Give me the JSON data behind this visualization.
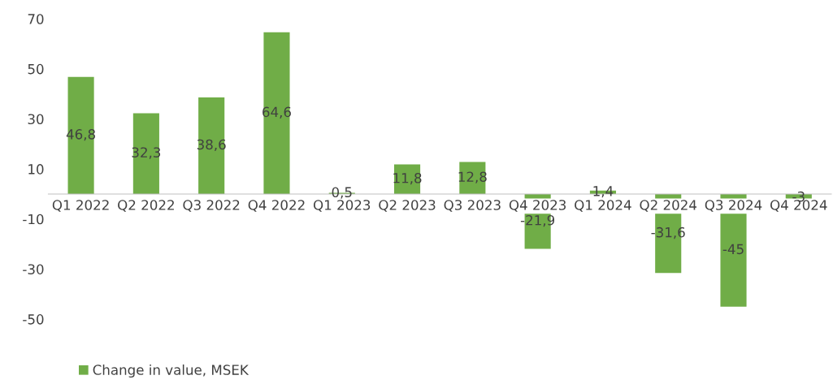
{
  "chart_data": {
    "type": "bar",
    "categories": [
      "Q1 2022",
      "Q2 2022",
      "Q3 2022",
      "Q4 2022",
      "Q1 2023",
      "Q2 2023",
      "Q3 2023",
      "Q4 2023",
      "Q1 2024",
      "Q2 2024",
      "Q3 2024",
      "Q4 2024"
    ],
    "series": [
      {
        "name": "Change in value, MSEK",
        "color": "#70ad47",
        "values": [
          46.8,
          32.3,
          38.6,
          64.6,
          0.5,
          11.8,
          12.8,
          -21.9,
          1.4,
          -31.6,
          -45,
          -3
        ],
        "value_labels": [
          "46,8",
          "32,3",
          "38,6",
          "64,6",
          "0,5",
          "11,8",
          "12,8",
          "-21,9",
          "1,4",
          "-31,6",
          "-45",
          "-3"
        ]
      }
    ],
    "ylim": [
      -50,
      70
    ],
    "yticks": [
      70,
      50,
      30,
      10,
      -10,
      -30,
      -50
    ],
    "grid": false,
    "legend": "bottom left"
  }
}
